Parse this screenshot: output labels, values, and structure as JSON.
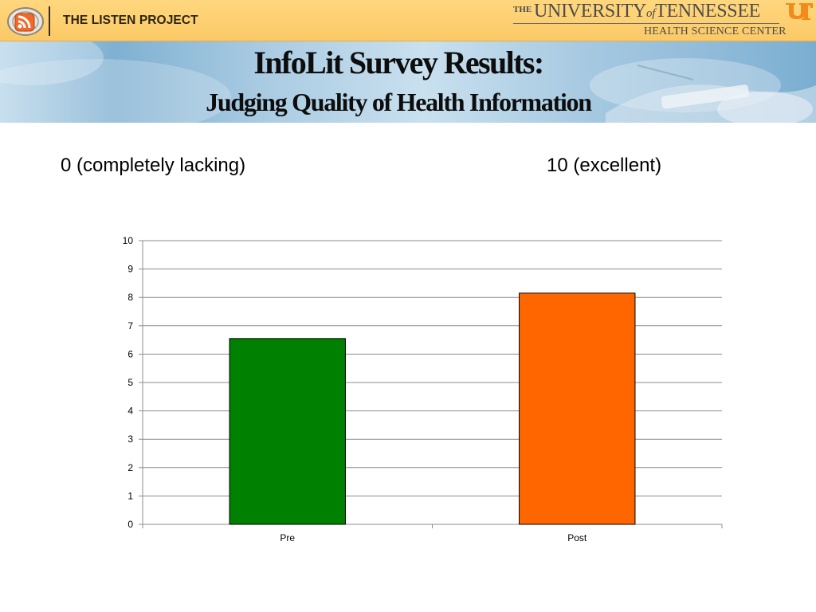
{
  "header": {
    "project_name": "THE LISTEN PROJECT",
    "university": {
      "the": "THE",
      "name_part1": "UNIVERSITY",
      "name_of": "of",
      "name_part2": "TENNESSEE",
      "subtitle": "HEALTH SCIENCE CENTER",
      "mark": "UT"
    },
    "icons": {
      "feed": "rss-feed-icon",
      "university": "ut-logo-icon"
    }
  },
  "banner": {
    "title": "InfoLit Survey Results:",
    "subtitle": "Judging Quality of Health Information"
  },
  "scale": {
    "low_label": "0 (completely lacking)",
    "high_label": "10 (excellent)"
  },
  "colors": {
    "header_bg": "#fbcb6b",
    "pre_bar": "#008000",
    "post_bar": "#ff6600",
    "rss_orange": "#f06a2a"
  },
  "chart_data": {
    "type": "bar",
    "categories": [
      "Pre",
      "Post"
    ],
    "values": [
      6.55,
      8.15
    ],
    "colors": [
      "#008000",
      "#ff6600"
    ],
    "title": "",
    "xlabel": "",
    "ylabel": "",
    "ylim": [
      0,
      10
    ],
    "yticks": [
      0,
      1,
      2,
      3,
      4,
      5,
      6,
      7,
      8,
      9,
      10
    ],
    "grid": true,
    "legend": "none"
  }
}
